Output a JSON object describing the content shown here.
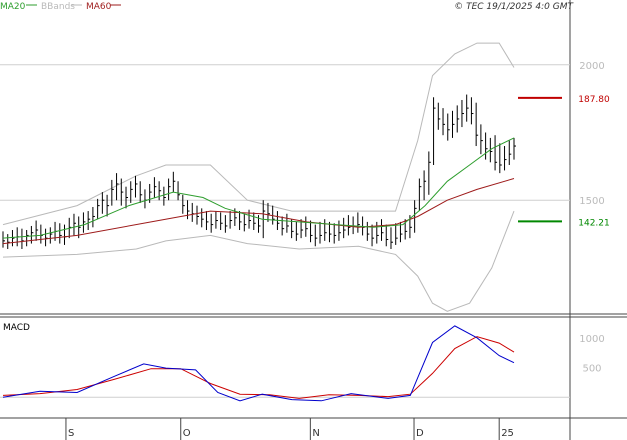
{
  "header": {
    "legend": [
      {
        "label": "MA20",
        "color": "#2e9e2e"
      },
      {
        "label": "BBands",
        "color": "#b9b9b9"
      },
      {
        "label": "MA60",
        "color": "#9e1b1b"
      }
    ],
    "copyright": "© TEC 19/1/2025 4:0 GMT"
  },
  "chart_data": [
    {
      "type": "line",
      "panel": "price",
      "x_tick_labels": [
        "S",
        "O",
        "N",
        "D",
        "25"
      ],
      "y_ticks": [
        {
          "label": "2000",
          "value": 200
        },
        {
          "label": "1500",
          "value": 150
        }
      ],
      "ylim": [
        108,
        218
      ],
      "grid": true,
      "legend_position": "top-left",
      "price_tags": [
        {
          "label": "187.80",
          "value": 187.8,
          "color": "#c00000"
        },
        {
          "label": "142.21",
          "value": 142.21,
          "color": "#008800"
        }
      ],
      "ohlc": [
        {
          "h": 138.5,
          "l": 132.5,
          "c": 135.0
        },
        {
          "h": 137.5,
          "l": 132.0,
          "c": 134.5
        },
        {
          "h": 139.0,
          "l": 133.0,
          "c": 136.0
        },
        {
          "h": 140.0,
          "l": 133.0,
          "c": 136.5
        },
        {
          "h": 139.5,
          "l": 132.0,
          "c": 135.0
        },
        {
          "h": 139.0,
          "l": 133.0,
          "c": 137.0
        },
        {
          "h": 140.5,
          "l": 134.0,
          "c": 138.0
        },
        {
          "h": 142.5,
          "l": 135.0,
          "c": 139.0
        },
        {
          "h": 141.0,
          "l": 134.0,
          "c": 137.0
        },
        {
          "h": 139.5,
          "l": 133.0,
          "c": 136.0
        },
        {
          "h": 140.0,
          "l": 134.0,
          "c": 137.5
        },
        {
          "h": 142.0,
          "l": 135.0,
          "c": 138.5
        },
        {
          "h": 141.5,
          "l": 134.0,
          "c": 137.0
        },
        {
          "h": 141.0,
          "l": 133.5,
          "c": 136.5
        },
        {
          "h": 143.5,
          "l": 136.0,
          "c": 140.0
        },
        {
          "h": 145.0,
          "l": 137.0,
          "c": 141.5
        },
        {
          "h": 144.0,
          "l": 136.0,
          "c": 140.0
        },
        {
          "h": 145.5,
          "l": 138.0,
          "c": 142.0
        },
        {
          "h": 146.0,
          "l": 139.0,
          "c": 143.0
        },
        {
          "h": 147.5,
          "l": 140.0,
          "c": 144.0
        },
        {
          "h": 150.5,
          "l": 143.0,
          "c": 148.0
        },
        {
          "h": 153.0,
          "l": 145.0,
          "c": 150.0
        },
        {
          "h": 152.0,
          "l": 144.0,
          "c": 148.0
        },
        {
          "h": 157.5,
          "l": 148.0,
          "c": 154.0
        },
        {
          "h": 160.0,
          "l": 150.0,
          "c": 156.0
        },
        {
          "h": 158.0,
          "l": 148.0,
          "c": 153.0
        },
        {
          "h": 155.0,
          "l": 147.0,
          "c": 151.0
        },
        {
          "h": 157.0,
          "l": 149.0,
          "c": 154.0
        },
        {
          "h": 159.0,
          "l": 151.0,
          "c": 156.0
        },
        {
          "h": 157.0,
          "l": 149.0,
          "c": 152.0
        },
        {
          "h": 154.0,
          "l": 147.0,
          "c": 150.0
        },
        {
          "h": 156.0,
          "l": 149.0,
          "c": 153.0
        },
        {
          "h": 158.5,
          "l": 151.0,
          "c": 155.0
        },
        {
          "h": 157.0,
          "l": 150.0,
          "c": 153.5
        },
        {
          "h": 155.0,
          "l": 148.0,
          "c": 151.0
        },
        {
          "h": 158.0,
          "l": 150.0,
          "c": 155.0
        },
        {
          "h": 160.5,
          "l": 153.0,
          "c": 157.0
        },
        {
          "h": 157.0,
          "l": 150.0,
          "c": 152.0
        },
        {
          "h": 152.0,
          "l": 145.0,
          "c": 148.0
        },
        {
          "h": 150.0,
          "l": 143.0,
          "c": 146.0
        },
        {
          "h": 149.0,
          "l": 142.0,
          "c": 145.0
        },
        {
          "h": 148.0,
          "l": 141.0,
          "c": 144.0
        },
        {
          "h": 147.0,
          "l": 140.0,
          "c": 143.0
        },
        {
          "h": 146.0,
          "l": 139.0,
          "c": 142.0
        },
        {
          "h": 145.0,
          "l": 138.0,
          "c": 141.0
        },
        {
          "h": 146.0,
          "l": 139.5,
          "c": 142.5
        },
        {
          "h": 145.5,
          "l": 139.0,
          "c": 141.5
        },
        {
          "h": 144.5,
          "l": 138.0,
          "c": 140.5
        },
        {
          "h": 146.0,
          "l": 139.5,
          "c": 142.5
        },
        {
          "h": 147.0,
          "l": 140.5,
          "c": 143.5
        },
        {
          "h": 146.0,
          "l": 139.0,
          "c": 142.0
        },
        {
          "h": 145.0,
          "l": 138.5,
          "c": 141.0
        },
        {
          "h": 146.5,
          "l": 139.5,
          "c": 142.5
        },
        {
          "h": 145.5,
          "l": 139.0,
          "c": 141.5
        },
        {
          "h": 144.5,
          "l": 138.0,
          "c": 140.5
        },
        {
          "h": 150.0,
          "l": 136.0,
          "c": 146.0
        },
        {
          "h": 149.0,
          "l": 142.0,
          "c": 145.0
        },
        {
          "h": 148.0,
          "l": 141.0,
          "c": 143.0
        },
        {
          "h": 146.0,
          "l": 139.0,
          "c": 141.5
        },
        {
          "h": 144.0,
          "l": 137.0,
          "c": 139.5
        },
        {
          "h": 145.0,
          "l": 138.0,
          "c": 140.5
        },
        {
          "h": 143.0,
          "l": 136.0,
          "c": 138.5
        },
        {
          "h": 142.0,
          "l": 135.0,
          "c": 137.5
        },
        {
          "h": 143.0,
          "l": 136.0,
          "c": 139.0
        },
        {
          "h": 144.0,
          "l": 136.5,
          "c": 139.5
        },
        {
          "h": 142.5,
          "l": 134.5,
          "c": 137.0
        },
        {
          "h": 141.0,
          "l": 133.0,
          "c": 136.0
        },
        {
          "h": 142.0,
          "l": 134.0,
          "c": 137.0
        },
        {
          "h": 143.0,
          "l": 135.0,
          "c": 138.0
        },
        {
          "h": 142.0,
          "l": 134.5,
          "c": 137.5
        },
        {
          "h": 141.5,
          "l": 134.0,
          "c": 137.0
        },
        {
          "h": 142.5,
          "l": 135.0,
          "c": 138.0
        },
        {
          "h": 143.5,
          "l": 136.0,
          "c": 139.0
        },
        {
          "h": 144.5,
          "l": 137.0,
          "c": 140.0
        },
        {
          "h": 144.0,
          "l": 137.5,
          "c": 140.5
        },
        {
          "h": 145.5,
          "l": 138.0,
          "c": 141.0
        },
        {
          "h": 144.0,
          "l": 137.0,
          "c": 140.0
        },
        {
          "h": 142.0,
          "l": 135.0,
          "c": 137.5
        },
        {
          "h": 141.0,
          "l": 133.0,
          "c": 136.0
        },
        {
          "h": 142.0,
          "l": 134.0,
          "c": 137.0
        },
        {
          "h": 143.0,
          "l": 135.0,
          "c": 138.0
        },
        {
          "h": 141.0,
          "l": 133.0,
          "c": 135.5
        },
        {
          "h": 140.0,
          "l": 132.0,
          "c": 134.5
        },
        {
          "h": 141.5,
          "l": 133.5,
          "c": 136.0
        },
        {
          "h": 142.0,
          "l": 134.5,
          "c": 137.5
        },
        {
          "h": 143.0,
          "l": 135.5,
          "c": 138.5
        },
        {
          "h": 144.5,
          "l": 136.0,
          "c": 140.0
        },
        {
          "h": 150.0,
          "l": 138.0,
          "c": 147.0
        },
        {
          "h": 158.0,
          "l": 146.0,
          "c": 155.0
        },
        {
          "h": 161.0,
          "l": 150.0,
          "c": 157.0
        },
        {
          "h": 168.0,
          "l": 152.0,
          "c": 164.0
        },
        {
          "h": 188.0,
          "l": 163.0,
          "c": 184.0
        },
        {
          "h": 186.0,
          "l": 176.0,
          "c": 180.0
        },
        {
          "h": 184.0,
          "l": 174.0,
          "c": 178.0
        },
        {
          "h": 182.0,
          "l": 172.0,
          "c": 176.0
        },
        {
          "h": 183.0,
          "l": 173.0,
          "c": 178.0
        },
        {
          "h": 185.0,
          "l": 175.0,
          "c": 180.0
        },
        {
          "h": 187.0,
          "l": 177.0,
          "c": 182.0
        },
        {
          "h": 189.0,
          "l": 179.0,
          "c": 184.0
        },
        {
          "h": 188.0,
          "l": 178.0,
          "c": 182.0
        },
        {
          "h": 186.0,
          "l": 170.0,
          "c": 174.0
        },
        {
          "h": 178.0,
          "l": 167.0,
          "c": 172.0
        },
        {
          "h": 175.0,
          "l": 165.0,
          "c": 169.0
        },
        {
          "h": 173.0,
          "l": 164.0,
          "c": 168.0
        },
        {
          "h": 174.0,
          "l": 161.0,
          "c": 164.0
        },
        {
          "h": 171.0,
          "l": 160.0,
          "c": 163.0
        },
        {
          "h": 170.0,
          "l": 161.0,
          "c": 165.0
        },
        {
          "h": 172.0,
          "l": 163.0,
          "c": 167.0
        },
        {
          "h": 173.0,
          "l": 165.0,
          "c": 170.0
        }
      ],
      "ma20": [
        [
          0,
          136
        ],
        [
          10,
          137
        ],
        [
          22,
          141
        ],
        [
          34,
          148
        ],
        [
          46,
          153
        ],
        [
          54,
          151
        ],
        [
          60,
          147
        ],
        [
          70,
          143
        ],
        [
          80,
          142
        ],
        [
          90,
          141
        ],
        [
          100,
          140
        ],
        [
          108,
          141
        ],
        [
          114,
          148
        ],
        [
          120,
          157
        ],
        [
          126,
          163
        ],
        [
          132,
          169
        ],
        [
          138,
          173
        ]
      ],
      "ma60": [
        [
          0,
          134
        ],
        [
          20,
          137
        ],
        [
          40,
          142
        ],
        [
          56,
          146
        ],
        [
          70,
          145
        ],
        [
          82,
          142
        ],
        [
          96,
          140
        ],
        [
          106,
          141
        ],
        [
          112,
          144
        ],
        [
          120,
          150
        ],
        [
          128,
          154
        ],
        [
          138,
          158
        ]
      ],
      "bb_upper": [
        [
          0,
          141
        ],
        [
          20,
          148
        ],
        [
          36,
          159
        ],
        [
          44,
          163
        ],
        [
          56,
          163
        ],
        [
          66,
          150
        ],
        [
          78,
          146
        ],
        [
          96,
          146
        ],
        [
          106,
          146
        ],
        [
          112,
          172
        ],
        [
          116,
          196
        ],
        [
          122,
          204
        ],
        [
          128,
          208
        ],
        [
          134,
          208
        ],
        [
          138,
          199
        ]
      ],
      "bb_lower": [
        [
          0,
          129
        ],
        [
          20,
          130
        ],
        [
          36,
          132
        ],
        [
          44,
          135
        ],
        [
          56,
          137
        ],
        [
          66,
          134
        ],
        [
          80,
          132
        ],
        [
          96,
          133
        ],
        [
          106,
          130
        ],
        [
          112,
          122
        ],
        [
          116,
          112
        ],
        [
          120,
          109
        ],
        [
          126,
          112
        ],
        [
          132,
          125
        ],
        [
          138,
          146
        ]
      ]
    },
    {
      "type": "line",
      "panel": "macd",
      "title": "MACD",
      "x_tick_labels": [
        "S",
        "O",
        "N",
        "D",
        "25"
      ],
      "y_ticks": [
        {
          "label": "1000",
          "value": 10.0
        },
        {
          "label": "500",
          "value": 5.0
        }
      ],
      "ylim": [
        -3.5,
        13.5
      ],
      "grid": true,
      "series": [
        {
          "color": "#0000cc",
          "points": [
            [
              0,
              0.0
            ],
            [
              10,
              1.0
            ],
            [
              20,
              0.8
            ],
            [
              30,
              3.5
            ],
            [
              38,
              5.6
            ],
            [
              44,
              4.9
            ],
            [
              52,
              4.6
            ],
            [
              58,
              0.8
            ],
            [
              64,
              -0.6
            ],
            [
              70,
              0.5
            ],
            [
              78,
              -0.4
            ],
            [
              86,
              -0.6
            ],
            [
              94,
              0.6
            ],
            [
              104,
              -0.2
            ],
            [
              110,
              0.3
            ],
            [
              116,
              9.2
            ],
            [
              122,
              12.0
            ],
            [
              128,
              10.0
            ],
            [
              134,
              7.0
            ],
            [
              138,
              5.8
            ]
          ]
        },
        {
          "color": "#cc0000",
          "points": [
            [
              0,
              0.3
            ],
            [
              10,
              0.6
            ],
            [
              20,
              1.3
            ],
            [
              30,
              3.0
            ],
            [
              40,
              4.8
            ],
            [
              48,
              4.8
            ],
            [
              56,
              2.3
            ],
            [
              64,
              0.5
            ],
            [
              72,
              0.4
            ],
            [
              80,
              -0.2
            ],
            [
              88,
              0.4
            ],
            [
              96,
              0.3
            ],
            [
              104,
              0.1
            ],
            [
              110,
              0.5
            ],
            [
              116,
              4.0
            ],
            [
              122,
              8.2
            ],
            [
              128,
              10.2
            ],
            [
              134,
              9.1
            ],
            [
              138,
              7.6
            ]
          ]
        }
      ]
    }
  ]
}
